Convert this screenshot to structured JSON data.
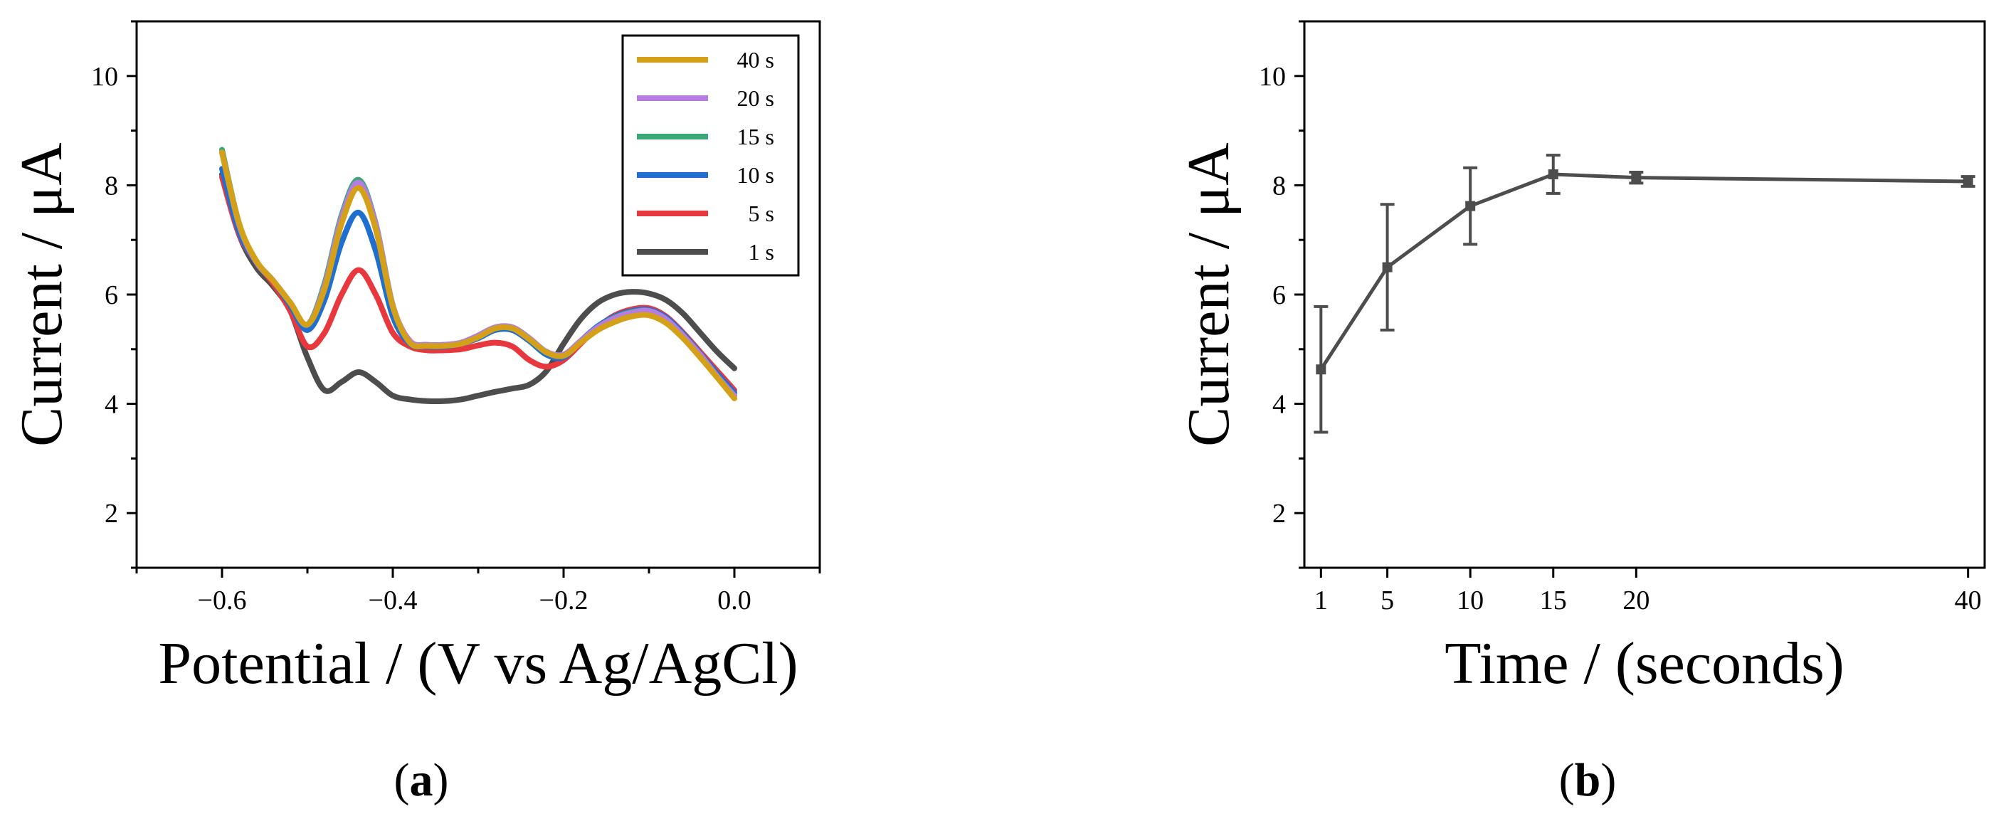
{
  "chart_data": [
    {
      "type": "line",
      "panel_label": "(a)",
      "xlabel": "Potential / (V vs Ag/AgCl)",
      "ylabel": "Current / μA",
      "xlim": [
        -0.7,
        0.1
      ],
      "ylim": [
        1,
        11
      ],
      "xticks": [
        -0.6,
        -0.4,
        -0.2,
        0.0
      ],
      "xtick_labels": [
        "−0.6",
        "−0.4",
        "−0.2",
        "0.0"
      ],
      "yticks": [
        2,
        4,
        6,
        8,
        10
      ],
      "ytick_labels": [
        "2",
        "4",
        "6",
        "8",
        "10"
      ],
      "legend_position": "top-right",
      "grid": false,
      "series": [
        {
          "name": "1 s",
          "color": "#4d4d4d",
          "x": [
            -0.6,
            -0.58,
            -0.56,
            -0.54,
            -0.52,
            -0.5,
            -0.48,
            -0.46,
            -0.44,
            -0.42,
            -0.4,
            -0.38,
            -0.36,
            -0.34,
            -0.32,
            -0.3,
            -0.28,
            -0.26,
            -0.24,
            -0.22,
            -0.2,
            -0.18,
            -0.16,
            -0.14,
            -0.12,
            -0.1,
            -0.08,
            -0.06,
            -0.04,
            -0.02,
            0.0
          ],
          "y": [
            8.2,
            7.1,
            6.5,
            6.15,
            5.7,
            4.85,
            4.25,
            4.4,
            4.58,
            4.4,
            4.15,
            4.08,
            4.05,
            4.05,
            4.08,
            4.15,
            4.22,
            4.28,
            4.35,
            4.6,
            5.1,
            5.55,
            5.85,
            6.0,
            6.05,
            6.02,
            5.9,
            5.65,
            5.3,
            4.95,
            4.65
          ]
        },
        {
          "name": "5 s",
          "color": "#e8383d",
          "x": [
            -0.6,
            -0.58,
            -0.56,
            -0.54,
            -0.52,
            -0.5,
            -0.48,
            -0.46,
            -0.44,
            -0.42,
            -0.4,
            -0.38,
            -0.36,
            -0.34,
            -0.32,
            -0.3,
            -0.28,
            -0.26,
            -0.24,
            -0.22,
            -0.2,
            -0.18,
            -0.16,
            -0.14,
            -0.12,
            -0.1,
            -0.08,
            -0.06,
            -0.04,
            -0.02,
            0.0
          ],
          "y": [
            8.15,
            7.1,
            6.6,
            6.2,
            5.7,
            5.05,
            5.3,
            6.0,
            6.45,
            6.0,
            5.3,
            5.05,
            4.98,
            4.98,
            5.0,
            5.07,
            5.12,
            5.05,
            4.8,
            4.68,
            4.8,
            5.1,
            5.4,
            5.62,
            5.73,
            5.75,
            5.6,
            5.3,
            4.95,
            4.6,
            4.25
          ]
        },
        {
          "name": "10 s",
          "color": "#1f6fd1",
          "x": [
            -0.6,
            -0.58,
            -0.56,
            -0.54,
            -0.52,
            -0.5,
            -0.48,
            -0.46,
            -0.44,
            -0.42,
            -0.4,
            -0.38,
            -0.36,
            -0.34,
            -0.32,
            -0.3,
            -0.28,
            -0.26,
            -0.24,
            -0.22,
            -0.2,
            -0.18,
            -0.16,
            -0.14,
            -0.12,
            -0.1,
            -0.08,
            -0.06,
            -0.04,
            -0.02,
            0.0
          ],
          "y": [
            8.3,
            7.15,
            6.6,
            6.25,
            5.8,
            5.35,
            5.9,
            6.95,
            7.5,
            6.8,
            5.6,
            5.1,
            5.05,
            5.05,
            5.1,
            5.2,
            5.35,
            5.35,
            5.15,
            4.9,
            4.85,
            5.15,
            5.42,
            5.6,
            5.7,
            5.72,
            5.58,
            5.28,
            4.92,
            4.55,
            4.2
          ]
        },
        {
          "name": "15 s",
          "color": "#3aa876",
          "x": [
            -0.6,
            -0.58,
            -0.56,
            -0.54,
            -0.52,
            -0.5,
            -0.48,
            -0.46,
            -0.44,
            -0.42,
            -0.4,
            -0.38,
            -0.36,
            -0.34,
            -0.32,
            -0.3,
            -0.28,
            -0.26,
            -0.24,
            -0.22,
            -0.2,
            -0.18,
            -0.16,
            -0.14,
            -0.12,
            -0.1,
            -0.08,
            -0.06,
            -0.04,
            -0.02,
            0.0
          ],
          "y": [
            8.65,
            7.3,
            6.6,
            6.25,
            5.85,
            5.45,
            6.2,
            7.45,
            8.1,
            7.3,
            5.8,
            5.15,
            5.08,
            5.08,
            5.12,
            5.25,
            5.4,
            5.4,
            5.2,
            4.95,
            4.9,
            5.15,
            5.4,
            5.58,
            5.68,
            5.7,
            5.55,
            5.25,
            4.9,
            4.5,
            4.15
          ]
        },
        {
          "name": "20 s",
          "color": "#b57de2",
          "x": [
            -0.6,
            -0.58,
            -0.56,
            -0.54,
            -0.52,
            -0.5,
            -0.48,
            -0.46,
            -0.44,
            -0.42,
            -0.4,
            -0.38,
            -0.36,
            -0.34,
            -0.32,
            -0.3,
            -0.28,
            -0.26,
            -0.24,
            -0.22,
            -0.2,
            -0.18,
            -0.16,
            -0.14,
            -0.12,
            -0.1,
            -0.08,
            -0.06,
            -0.04,
            -0.02,
            0.0
          ],
          "y": [
            8.6,
            7.28,
            6.6,
            6.25,
            5.85,
            5.45,
            6.15,
            7.4,
            8.05,
            7.28,
            5.8,
            5.15,
            5.08,
            5.08,
            5.12,
            5.25,
            5.4,
            5.4,
            5.2,
            4.95,
            4.9,
            5.15,
            5.4,
            5.57,
            5.67,
            5.7,
            5.55,
            5.25,
            4.9,
            4.5,
            4.15
          ]
        },
        {
          "name": "40 s",
          "color": "#d4a017",
          "x": [
            -0.6,
            -0.58,
            -0.56,
            -0.54,
            -0.52,
            -0.5,
            -0.48,
            -0.46,
            -0.44,
            -0.42,
            -0.4,
            -0.38,
            -0.36,
            -0.34,
            -0.32,
            -0.3,
            -0.28,
            -0.26,
            -0.24,
            -0.22,
            -0.2,
            -0.18,
            -0.16,
            -0.14,
            -0.12,
            -0.1,
            -0.08,
            -0.06,
            -0.04,
            -0.02,
            0.0
          ],
          "y": [
            8.6,
            7.3,
            6.62,
            6.25,
            5.85,
            5.45,
            6.1,
            7.3,
            7.95,
            7.2,
            5.78,
            5.12,
            5.06,
            5.06,
            5.1,
            5.22,
            5.38,
            5.38,
            5.18,
            4.94,
            4.88,
            5.12,
            5.35,
            5.5,
            5.6,
            5.62,
            5.48,
            5.2,
            4.85,
            4.48,
            4.1
          ]
        }
      ]
    },
    {
      "type": "line",
      "panel_label": "(b)",
      "xlabel": "Time / (seconds)",
      "ylabel": "Current / μA",
      "xlim": [
        0,
        41
      ],
      "ylim": [
        1,
        11
      ],
      "xticks": [
        1,
        5,
        10,
        15,
        20,
        40
      ],
      "xtick_labels": [
        "1",
        "5",
        "10",
        "15",
        "20",
        "40"
      ],
      "yticks": [
        2,
        4,
        6,
        8,
        10
      ],
      "ytick_labels": [
        "2",
        "4",
        "6",
        "8",
        "10"
      ],
      "grid": false,
      "series": [
        {
          "name": "Current",
          "color": "#4d4d4d",
          "x": [
            1,
            5,
            10,
            15,
            20,
            40
          ],
          "y": [
            4.63,
            6.5,
            7.62,
            8.2,
            8.14,
            8.07
          ],
          "error": [
            1.15,
            1.15,
            0.7,
            0.35,
            0.1,
            0.09
          ]
        }
      ]
    }
  ]
}
